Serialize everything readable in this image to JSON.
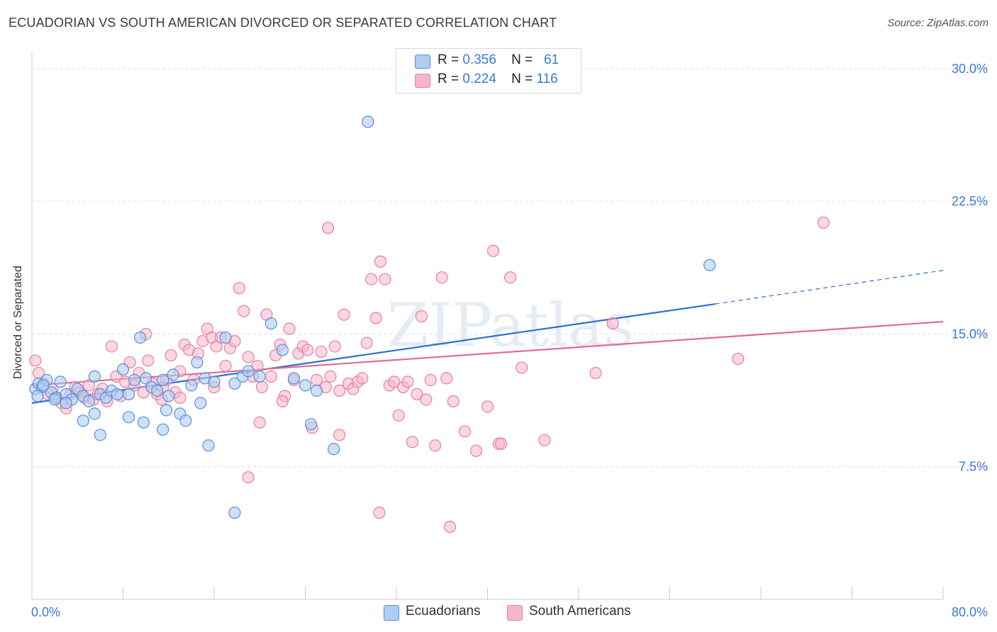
{
  "title": "ECUADORIAN VS SOUTH AMERICAN DIVORCED OR SEPARATED CORRELATION CHART",
  "source": "Source: ZipAtlas.com",
  "watermark": "ZIPatlas",
  "legend": {
    "rows": [
      {
        "r_label": "R =",
        "r_value": "0.356",
        "n_label": "N =",
        "n_value": "61"
      },
      {
        "r_label": "R =",
        "r_value": "0.224",
        "n_label": "N =",
        "n_value": "116"
      }
    ]
  },
  "colors": {
    "ecuadorians_fill": "#aecdf5",
    "ecuadorians_stroke": "#5b8fd6",
    "ecuadorians_line": "#2a6fd0",
    "south_americans_fill": "#f7b6cb",
    "south_americans_stroke": "#e77fa0",
    "south_americans_line": "#e06b95",
    "axis_text": "#3a7bd5"
  },
  "chart_data": {
    "type": "scatter",
    "title": "ECUADORIAN VS SOUTH AMERICAN DIVORCED OR SEPARATED CORRELATION CHART",
    "xlabel": "",
    "ylabel": "Divorced or Separated",
    "xlim": [
      0,
      80
    ],
    "ylim": [
      0,
      31
    ],
    "x_tick_labels": [
      "0.0%",
      "80.0%"
    ],
    "y_ticks": [
      7.5,
      15.0,
      22.5,
      30.0
    ],
    "y_tick_labels": [
      "7.5%",
      "15.0%",
      "22.5%",
      "30.0%"
    ],
    "grid": true,
    "legend_position": "bottom-center",
    "series": [
      {
        "name": "Ecuadorians",
        "r": 0.356,
        "n": 61,
        "trend": {
          "x0": 0,
          "y0": 11.1,
          "x1": 60,
          "y1": 16.7,
          "dash_to_x": 80,
          "dash_to_y": 18.6
        },
        "points": [
          [
            0.3,
            11.9
          ],
          [
            0.6,
            12.2
          ],
          [
            0.9,
            12.0
          ],
          [
            1.3,
            12.4
          ],
          [
            1.7,
            11.7
          ],
          [
            2.1,
            11.4
          ],
          [
            2.5,
            12.3
          ],
          [
            3.0,
            11.6
          ],
          [
            3.5,
            11.3
          ],
          [
            4.0,
            11.9
          ],
          [
            4.5,
            11.5
          ],
          [
            5.0,
            11.2
          ],
          [
            5.5,
            12.6
          ],
          [
            6.0,
            11.6
          ],
          [
            6.5,
            11.4
          ],
          [
            7.0,
            11.8
          ],
          [
            7.5,
            11.6
          ],
          [
            8.0,
            13.0
          ],
          [
            8.5,
            11.6
          ],
          [
            9.0,
            12.4
          ],
          [
            9.5,
            14.8
          ],
          [
            10.0,
            12.5
          ],
          [
            10.5,
            12.0
          ],
          [
            11.0,
            11.8
          ],
          [
            11.5,
            12.4
          ],
          [
            12.0,
            11.5
          ],
          [
            12.4,
            12.7
          ],
          [
            13.0,
            10.5
          ],
          [
            13.5,
            10.1
          ],
          [
            14.0,
            12.1
          ],
          [
            14.5,
            13.4
          ],
          [
            15.2,
            12.5
          ],
          [
            16.0,
            12.3
          ],
          [
            17.0,
            14.8
          ],
          [
            17.8,
            12.2
          ],
          [
            18.5,
            12.6
          ],
          [
            19.0,
            12.9
          ],
          [
            20.0,
            12.6
          ],
          [
            21.0,
            15.6
          ],
          [
            22.0,
            14.1
          ],
          [
            23.0,
            12.5
          ],
          [
            24.0,
            12.1
          ],
          [
            25.0,
            11.8
          ],
          [
            6.0,
            9.3
          ],
          [
            5.5,
            10.5
          ],
          [
            4.5,
            10.1
          ],
          [
            3.0,
            11.1
          ],
          [
            2.0,
            11.3
          ],
          [
            1.0,
            12.1
          ],
          [
            0.5,
            11.5
          ],
          [
            8.5,
            10.3
          ],
          [
            9.8,
            10.0
          ],
          [
            11.5,
            9.6
          ],
          [
            11.8,
            10.7
          ],
          [
            14.8,
            11.1
          ],
          [
            15.5,
            8.7
          ],
          [
            17.8,
            4.9
          ],
          [
            24.5,
            9.9
          ],
          [
            26.5,
            8.5
          ],
          [
            29.5,
            27.0
          ],
          [
            59.5,
            18.9
          ]
        ]
      },
      {
        "name": "South Americans",
        "r": 0.224,
        "n": 116,
        "trend": {
          "x0": 0,
          "y0": 12.1,
          "x1": 80,
          "y1": 15.7
        },
        "points": [
          [
            0.3,
            13.5
          ],
          [
            0.6,
            12.8
          ],
          [
            1.0,
            12.2
          ],
          [
            1.4,
            11.6
          ],
          [
            1.8,
            11.9
          ],
          [
            2.2,
            11.4
          ],
          [
            2.6,
            11.1
          ],
          [
            3.0,
            10.8
          ],
          [
            3.4,
            11.6
          ],
          [
            3.8,
            12.0
          ],
          [
            4.2,
            11.7
          ],
          [
            4.6,
            11.4
          ],
          [
            5.0,
            12.1
          ],
          [
            5.4,
            11.3
          ],
          [
            5.8,
            11.6
          ],
          [
            6.2,
            11.9
          ],
          [
            6.6,
            11.2
          ],
          [
            7.0,
            14.3
          ],
          [
            7.4,
            12.6
          ],
          [
            7.8,
            11.5
          ],
          [
            8.2,
            12.3
          ],
          [
            8.6,
            13.4
          ],
          [
            9.0,
            12.1
          ],
          [
            9.4,
            12.8
          ],
          [
            9.8,
            11.7
          ],
          [
            10.2,
            13.5
          ],
          [
            10.6,
            12.2
          ],
          [
            11.0,
            11.6
          ],
          [
            11.4,
            11.3
          ],
          [
            11.8,
            12.4
          ],
          [
            12.2,
            13.8
          ],
          [
            12.6,
            11.7
          ],
          [
            13.0,
            12.9
          ],
          [
            13.4,
            14.4
          ],
          [
            13.8,
            14.1
          ],
          [
            14.2,
            12.4
          ],
          [
            14.6,
            13.9
          ],
          [
            15.0,
            14.6
          ],
          [
            15.4,
            15.3
          ],
          [
            15.8,
            14.8
          ],
          [
            16.2,
            14.3
          ],
          [
            16.6,
            14.8
          ],
          [
            17.0,
            13.2
          ],
          [
            17.4,
            14.2
          ],
          [
            17.8,
            14.6
          ],
          [
            18.2,
            17.6
          ],
          [
            18.6,
            16.3
          ],
          [
            19.0,
            13.7
          ],
          [
            19.4,
            12.6
          ],
          [
            19.8,
            13.2
          ],
          [
            20.2,
            12.0
          ],
          [
            20.6,
            16.1
          ],
          [
            21.0,
            12.6
          ],
          [
            21.4,
            13.8
          ],
          [
            21.8,
            14.4
          ],
          [
            22.2,
            11.5
          ],
          [
            22.6,
            15.3
          ],
          [
            23.0,
            12.4
          ],
          [
            23.4,
            13.9
          ],
          [
            23.8,
            14.3
          ],
          [
            24.2,
            14.1
          ],
          [
            24.6,
            9.7
          ],
          [
            25.0,
            12.4
          ],
          [
            25.4,
            14.0
          ],
          [
            25.8,
            12.0
          ],
          [
            26.2,
            12.6
          ],
          [
            26.6,
            14.3
          ],
          [
            27.0,
            11.8
          ],
          [
            27.4,
            16.1
          ],
          [
            27.8,
            12.2
          ],
          [
            28.2,
            11.9
          ],
          [
            28.6,
            12.3
          ],
          [
            29.0,
            12.5
          ],
          [
            29.4,
            14.5
          ],
          [
            29.8,
            18.1
          ],
          [
            30.2,
            15.9
          ],
          [
            30.6,
            19.1
          ],
          [
            31.0,
            18.1
          ],
          [
            31.4,
            12.1
          ],
          [
            31.8,
            12.3
          ],
          [
            32.2,
            10.4
          ],
          [
            32.6,
            12.0
          ],
          [
            33.0,
            12.3
          ],
          [
            33.4,
            8.9
          ],
          [
            33.8,
            11.6
          ],
          [
            34.2,
            16.0
          ],
          [
            34.6,
            11.3
          ],
          [
            35.0,
            12.4
          ],
          [
            35.4,
            8.7
          ],
          [
            36.0,
            18.2
          ],
          [
            36.4,
            12.5
          ],
          [
            37.0,
            11.2
          ],
          [
            38.0,
            9.5
          ],
          [
            39.0,
            8.4
          ],
          [
            40.0,
            10.9
          ],
          [
            40.5,
            19.7
          ],
          [
            41.0,
            8.8
          ],
          [
            42.0,
            18.2
          ],
          [
            43.0,
            13.1
          ],
          [
            45.0,
            9.0
          ],
          [
            49.5,
            12.8
          ],
          [
            51.0,
            15.6
          ],
          [
            62.0,
            13.6
          ],
          [
            69.5,
            21.3
          ],
          [
            26.0,
            21.0
          ],
          [
            19.0,
            6.9
          ],
          [
            30.5,
            4.9
          ],
          [
            36.7,
            4.1
          ],
          [
            41.2,
            8.8
          ],
          [
            10.0,
            15.0
          ],
          [
            20.0,
            10.0
          ],
          [
            11.5,
            12.0
          ],
          [
            13.0,
            11.4
          ],
          [
            16.0,
            12.0
          ],
          [
            22.0,
            11.2
          ],
          [
            27.0,
            9.3
          ]
        ]
      }
    ]
  },
  "bottom_legend": {
    "items": [
      {
        "label": "Ecuadorians"
      },
      {
        "label": "South Americans"
      }
    ]
  }
}
